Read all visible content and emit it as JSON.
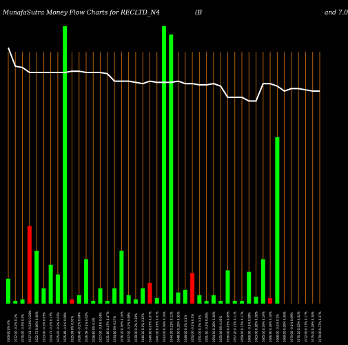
{
  "header": {
    "title": "MunafaSutra  Money Flow  Charts for RECLTD_N4",
    "fragment_left": "(B",
    "fragment_right": "and 7.0"
  },
  "chart_data": {
    "type": "bar",
    "title": "MunafaSutra  Money Flow  Charts for RECLTD_N4",
    "categories": [
      "1009.60 0% 0%",
      "1012.00 -0.2% 0.2%",
      "1015.00 -0.3% 0.3%",
      "1017.41 -0.24% 0.24%",
      "1022.73 0.06% 0.06%",
      "1023.00 -0.3% 0.03%",
      "1024.71 -0.2% 0.17%",
      "1025.00 -0.3% 0.02%",
      "1025.89 -0.1% 0.09%",
      "1025.99 0% 0.01%",
      "1026.40 -0.2% 0.04%",
      "1026.58 -0.1% 0.02%",
      "1026.60 0% 0.0%",
      "1027.00 -0.4% 0.04%",
      "1031.80 0.47% 0.47%",
      "1034.60 0% 0.27%",
      "1036.20 0.16% 0.16%",
      "1037.00 -0.2% 0.08%",
      "1039.00 0.2% 0.19%",
      "1040.20 0.1% 0.12%",
      "1040.90 0.07% 0.07%",
      "1041.00 0.01% 0.01%",
      "1043.00 0.19% 0.19%",
      "1044.30 0.12% 0.12%",
      "1048.00 0.35% 0.35%",
      "1049.00 0.1% 0.1%",
      "1050.00 -0.1% 0.1%",
      "1051.00 0.1% 0.1%",
      "1051.50 -0.1% 0.05%",
      "1054.50 0.28% 0.28%",
      "1055.00 0% 0.05%",
      "1056.00 0.01% 0.09%",
      "1057.20 0.11% 0.11%",
      "1059.00 0.17% 0.17%",
      "1060.00 -0.1% 0.09%",
      "1063.00 0.28% 0.28%",
      "1065.00 0.19% 0.19%",
      "1066.90 0.18% 0.18%",
      "1068.00 -0.1% 0.1%",
      "1069.00 0.09% 0.09%",
      "1070.00 -0.1% 0.09%",
      "1070.20 0.02% 0.02%",
      "1072.00 0.17% 0.17%",
      "1075.00 0.28% 0.28%",
      "1079.00 0.37% 0.37%"
    ],
    "bar_colors": [
      "green",
      "green",
      "green",
      "red",
      "green",
      "green",
      "green",
      "green",
      "green",
      "red",
      "green",
      "green",
      "green",
      "green",
      "green",
      "green",
      "green",
      "green",
      "green",
      "green",
      "red",
      "green",
      "green",
      "green",
      "green",
      "green",
      "red",
      "green",
      "green",
      "green",
      "green",
      "green",
      "green",
      "green",
      "green",
      "green",
      "green",
      "red",
      "green",
      "green",
      "green",
      "green",
      "green",
      "green",
      "green"
    ],
    "values": [
      9,
      1,
      1.5,
      28,
      19,
      5.5,
      14,
      10.5,
      100,
      1.5,
      3,
      16,
      1,
      5.5,
      1,
      5.5,
      19,
      3,
      1.5,
      5.5,
      7.5,
      2,
      100,
      97,
      4,
      5,
      11,
      3,
      1,
      3,
      1,
      12,
      1,
      1,
      11.5,
      2.5,
      16,
      2,
      60,
      0,
      0,
      0,
      0,
      0,
      0
    ],
    "line_values": [
      95,
      80,
      79,
      75,
      75,
      75,
      75,
      75,
      75,
      76,
      76,
      75,
      75,
      75,
      74,
      68,
      68,
      68,
      67,
      66,
      68,
      67,
      67,
      67,
      68,
      66,
      66,
      65,
      65,
      66,
      64,
      55,
      55,
      55,
      52,
      52,
      66,
      66,
      64,
      60,
      62,
      62,
      61,
      60,
      60
    ],
    "ylim": [
      0,
      100
    ],
    "grid": true,
    "colors": {
      "background": "#000000",
      "green": "#00ff00",
      "red": "#ff0000",
      "line": "#ffffff",
      "grid": "#b8620a",
      "text": "#ffffff"
    }
  }
}
